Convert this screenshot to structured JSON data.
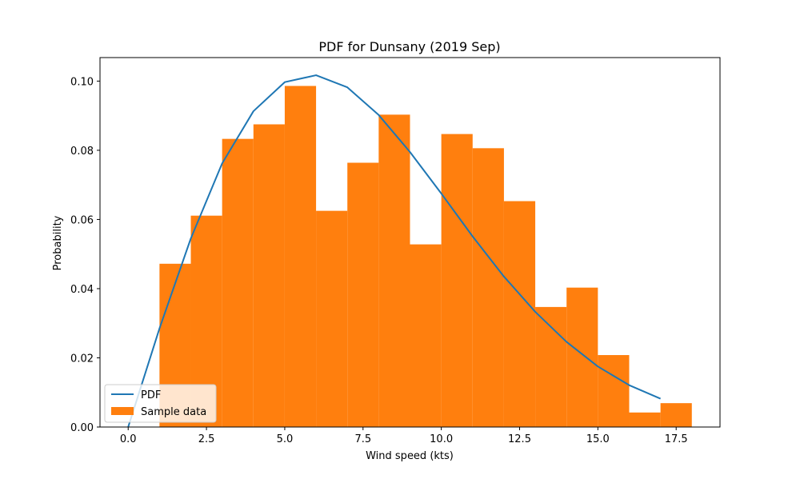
{
  "chart_data": {
    "type": "bar",
    "title": "PDF for Dunsany (2019 Sep)",
    "xlabel": "Wind speed (kts)",
    "ylabel": "Probability",
    "xlim": [
      -0.9,
      18.9
    ],
    "ylim": [
      0,
      0.1068
    ],
    "xticks": [
      0.0,
      2.5,
      5.0,
      7.5,
      10.0,
      12.5,
      15.0,
      17.5
    ],
    "xtick_labels": [
      "0.0",
      "2.5",
      "5.0",
      "7.5",
      "10.0",
      "12.5",
      "15.0",
      "17.5"
    ],
    "yticks": [
      0.0,
      0.02,
      0.04,
      0.06,
      0.08,
      0.1
    ],
    "ytick_labels": [
      "0.00",
      "0.02",
      "0.04",
      "0.06",
      "0.08",
      "0.10"
    ],
    "grid": false,
    "legend_position": "lower-left",
    "series": [
      {
        "name": "PDF",
        "kind": "line",
        "color": "#1f77b4",
        "x": [
          0,
          1,
          2,
          3,
          4,
          5,
          6,
          7,
          8,
          9,
          10,
          11,
          12,
          13,
          14,
          15,
          16,
          17
        ],
        "y": [
          0.0,
          0.0285,
          0.0545,
          0.0762,
          0.0913,
          0.0997,
          0.1017,
          0.0982,
          0.0902,
          0.0795,
          0.0675,
          0.0551,
          0.0435,
          0.0333,
          0.0246,
          0.0175,
          0.0121,
          0.0082
        ]
      },
      {
        "name": "Sample data",
        "kind": "histogram",
        "color": "#ff7f0e",
        "bin_edges": [
          0,
          1,
          2,
          3,
          4,
          5,
          6,
          7,
          8,
          9,
          10,
          11,
          12,
          13,
          14,
          15,
          16,
          17,
          18
        ],
        "values": [
          0.0,
          0.0472,
          0.0611,
          0.0833,
          0.0875,
          0.0986,
          0.0625,
          0.0764,
          0.0903,
          0.0528,
          0.0847,
          0.0806,
          0.0653,
          0.0347,
          0.0403,
          0.0208,
          0.0042,
          0.0069
        ]
      }
    ]
  }
}
